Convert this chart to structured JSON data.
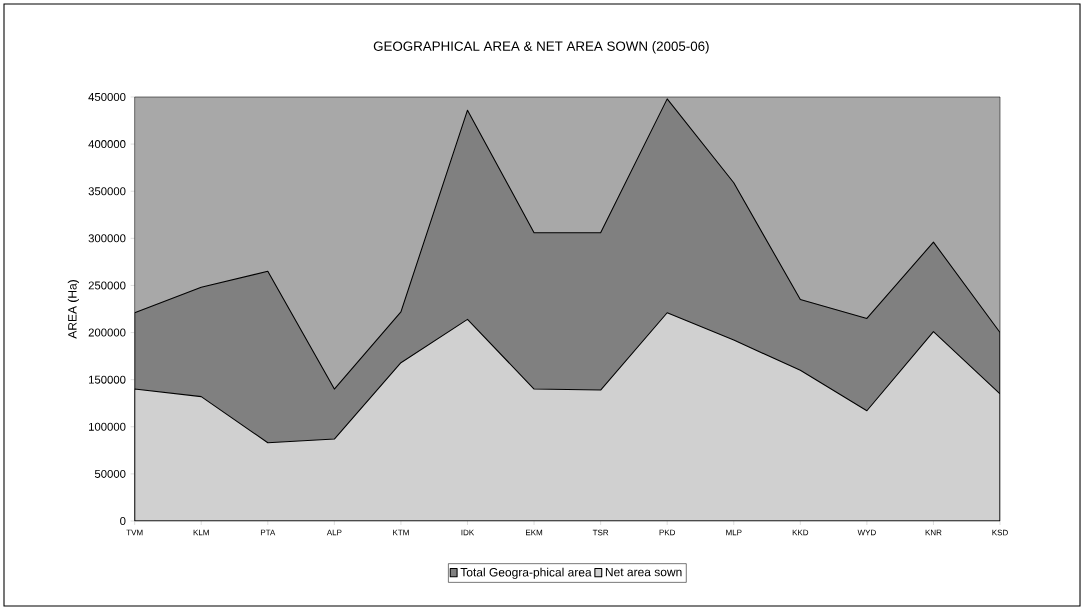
{
  "chart_data": {
    "type": "area",
    "title": "GEOGRAPHICAL AREA & NET AREA SOWN (2005-06)",
    "ylabel": "AREA (Ha)",
    "categories": [
      "TVM",
      "KLM",
      "PTA",
      "ALP",
      "KTM",
      "IDK",
      "EKM",
      "TSR",
      "PKD",
      "MLP",
      "KKD",
      "WYD",
      "KNR",
      "KSD"
    ],
    "series": [
      {
        "name": "Total Geogra-phical area",
        "color": "#808080",
        "values": [
          221000,
          248000,
          265000,
          140000,
          222000,
          436000,
          306000,
          306000,
          448000,
          359000,
          235000,
          215000,
          296000,
          200000
        ]
      },
      {
        "name": "Net area sown",
        "color": "#d0d0d0",
        "values": [
          140000,
          132000,
          83000,
          87000,
          168000,
          214000,
          140000,
          139000,
          221000,
          192000,
          160000,
          117000,
          201000,
          135000
        ]
      }
    ],
    "ylim": [
      0,
      450000
    ],
    "yticks": [
      0,
      50000,
      100000,
      150000,
      200000,
      250000,
      300000,
      350000,
      400000,
      450000
    ],
    "legend": "bottom"
  }
}
